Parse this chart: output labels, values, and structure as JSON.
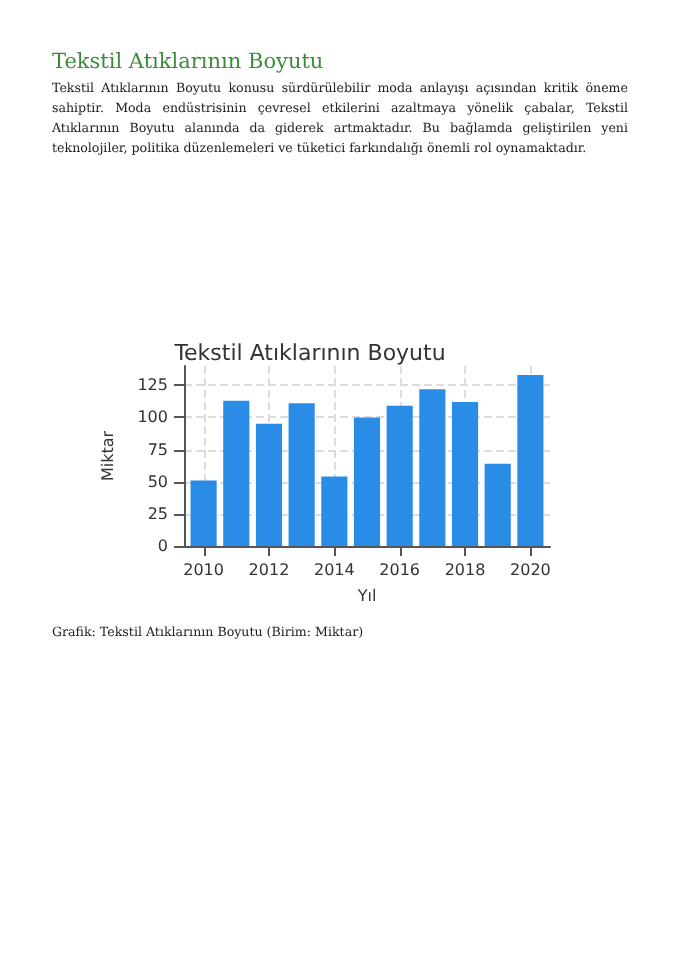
{
  "chart_data": {
    "type": "bar",
    "title": "Tekstil Atıklarının Boyutu",
    "xlabel": "Yıl",
    "ylabel": "Miktar",
    "annotations": [
      "Tekstil Atıklarının Boyutu",
      "Tekstil Atıklarının Boyutu konusu sürdürülebilir moda anlayışı açısından kritik öneme sahiptir. Moda endüstrisinin çevresel etkilerini azaltmaya yönelik çabalar, Tekstil Atıklarının Boyutu alanında da giderek artmaktadır. Bu bağlamda geliştirilen yeni teknolojiler, politika düzenlemeleri ve tüketici farkındalığı önemli rol oynamaktadır.",
      "Grafik: Tekstil Atıklarının Boyutu (Birim: Miktar)"
    ],
    "x": [
      2010,
      2011,
      2012,
      2013,
      2014,
      2015,
      2016,
      2017,
      2018,
      2019,
      2020
    ],
    "values": [
      51,
      113,
      95,
      111,
      54,
      100,
      109,
      122,
      112,
      64,
      133
    ],
    "color": "#2b8ce8",
    "xlim": [
      2009.4,
      2020.6
    ],
    "xticks": [
      2010,
      2012,
      2014,
      2016,
      2018,
      2020
    ],
    "ylim": [
      0,
      140
    ],
    "yticks": [
      0,
      25,
      50,
      75,
      100,
      125
    ],
    "grid": true
  }
}
